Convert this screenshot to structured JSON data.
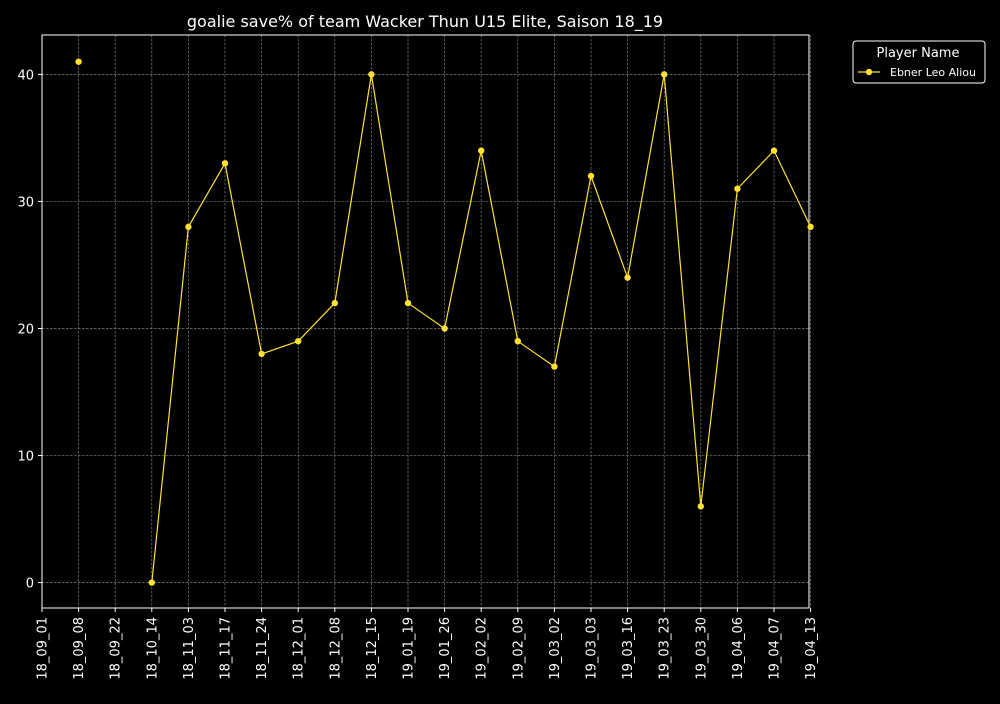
{
  "chart_data": {
    "type": "line",
    "title": "goalie save% of team Wacker Thun U15 Elite, Saison 18_19",
    "xlabel": "",
    "ylabel": "",
    "categories": [
      "18_09_01",
      "18_09_08",
      "18_09_22",
      "18_10_14",
      "18_11_03",
      "18_11_17",
      "18_11_24",
      "18_12_01",
      "18_12_08",
      "18_12_15",
      "19_01_19",
      "19_01_26",
      "19_02_02",
      "19_02_09",
      "19_03_02",
      "19_03_03",
      "19_03_16",
      "19_03_23",
      "19_03_30",
      "19_04_06",
      "19_04_07",
      "19_04_13"
    ],
    "ylim": [
      -2,
      43.1
    ],
    "yticks": [
      0,
      10,
      20,
      30,
      40
    ],
    "grid": true,
    "series": [
      {
        "name": "Ebner Leo Aliou",
        "color": "#ffe033",
        "values": [
          null,
          41,
          null,
          0,
          28,
          33,
          18,
          19,
          22,
          40,
          22,
          20,
          34,
          19,
          17,
          32,
          24,
          40,
          6,
          31,
          34,
          28
        ]
      }
    ],
    "legend": {
      "title": "Player Name",
      "placement": "outside-top-right"
    }
  },
  "colors": {
    "background": "#000000",
    "foreground": "#ffffff",
    "grid": "#808080"
  }
}
